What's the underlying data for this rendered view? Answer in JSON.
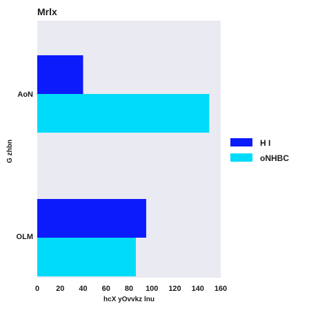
{
  "chart_data": {
    "type": "bar",
    "orientation": "horizontal",
    "title": "Mrlx",
    "xlabel": "hcX yOvvkz lnu",
    "ylabel": "G  zhbn",
    "categories": [
      "AoN",
      "OLM"
    ],
    "category_font": [
      "normal",
      "tiny"
    ],
    "series": [
      {
        "name": "H I",
        "values": [
          40,
          95
        ],
        "color": "#0c1bfb"
      },
      {
        "name": "oNHBC",
        "values": [
          150,
          86
        ],
        "color": "#00dbfa"
      }
    ],
    "xlim": [
      0,
      160
    ],
    "xticks": [
      "0",
      "20",
      "40",
      "60",
      "80",
      "100",
      "120",
      "140",
      "160"
    ],
    "grid": false,
    "background": "#eaeaf2",
    "legend": "right"
  }
}
